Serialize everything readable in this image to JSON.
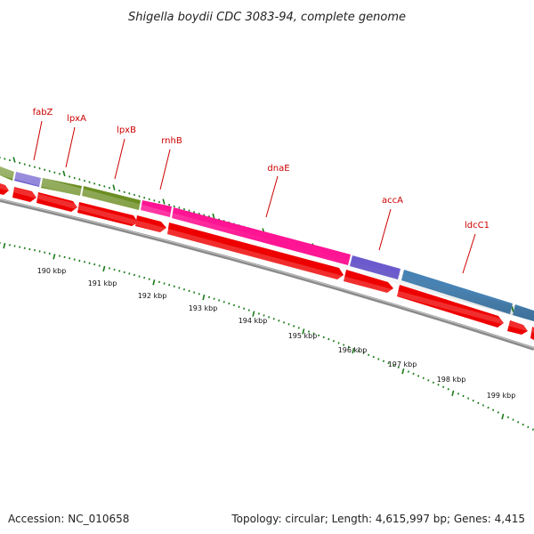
{
  "title": "Shigella boydii CDC 3083-94, complete genome",
  "footer": {
    "accession": "Accession: NC_010658",
    "summary": "Topology: circular; Length: 4,615,997 bp; Genes: 4,415"
  },
  "colors": {
    "tick": "#1a7a1a",
    "label": "#cc0000",
    "backbone": "#8a8a8a",
    "red_genes": "#ee0000",
    "olive": "#6b8e23",
    "purple": "#6a5acd",
    "pink": "#ff1493",
    "steel_blue": "#4682b4"
  },
  "genes": [
    {
      "name": "fabZ"
    },
    {
      "name": "lpxA"
    },
    {
      "name": "lpxB"
    },
    {
      "name": "rnhB"
    },
    {
      "name": "dnaE"
    },
    {
      "name": "accA"
    },
    {
      "name": "ldcC1"
    }
  ],
  "kbp_labels": [
    "190 kbp",
    "191 kbp",
    "192 kbp",
    "193 kbp",
    "194 kbp",
    "195 kbp",
    "196 kbp",
    "197 kbp",
    "198 kbp",
    "199 kbp"
  ]
}
